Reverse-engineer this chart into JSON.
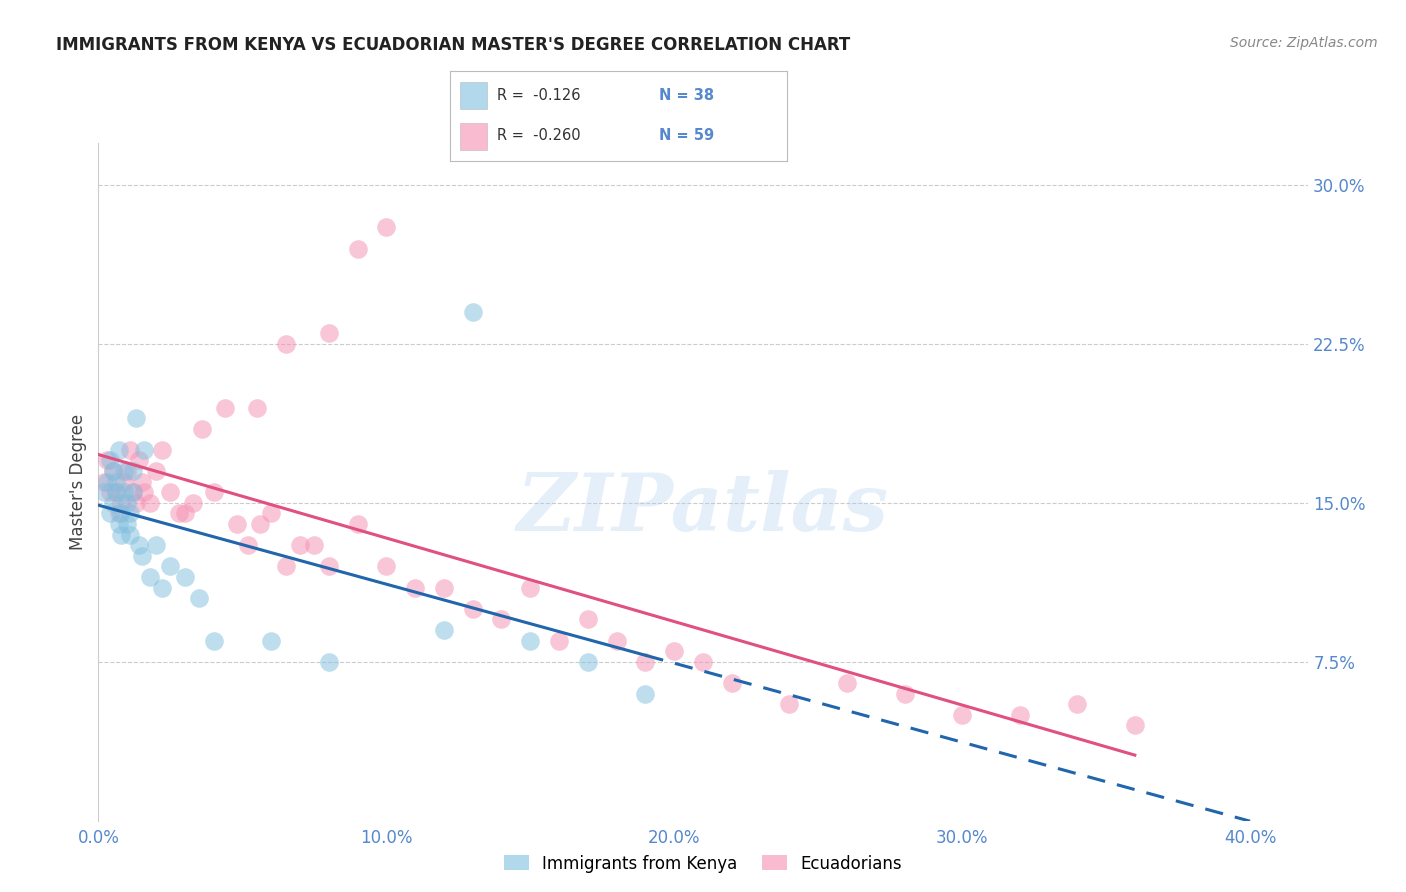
{
  "title": "IMMIGRANTS FROM KENYA VS ECUADORIAN MASTER'S DEGREE CORRELATION CHART",
  "source": "Source: ZipAtlas.com",
  "ylabel": "Master's Degree",
  "ytick_vals": [
    0.075,
    0.15,
    0.225,
    0.3
  ],
  "ytick_labels": [
    "7.5%",
    "15.0%",
    "22.5%",
    "30.0%"
  ],
  "xtick_vals": [
    0.0,
    0.1,
    0.2,
    0.3,
    0.4
  ],
  "xtick_labels": [
    "0.0%",
    "10.0%",
    "20.0%",
    "30.0%",
    "40.0%"
  ],
  "xlim": [
    0.0,
    0.42
  ],
  "ylim": [
    0.0,
    0.32
  ],
  "watermark": "ZIPatlas",
  "color_blue": "#7fbfdf",
  "color_pink": "#f48fb1",
  "color_blue_line": "#2166ac",
  "color_pink_line": "#e05080",
  "color_axis": "#5588cc",
  "kenya_x": [
    0.002,
    0.003,
    0.004,
    0.004,
    0.005,
    0.005,
    0.006,
    0.006,
    0.007,
    0.007,
    0.008,
    0.008,
    0.009,
    0.009,
    0.01,
    0.01,
    0.011,
    0.011,
    0.012,
    0.012,
    0.013,
    0.014,
    0.015,
    0.016,
    0.018,
    0.02,
    0.022,
    0.025,
    0.03,
    0.035,
    0.04,
    0.06,
    0.08,
    0.12,
    0.15,
    0.17,
    0.19,
    0.13
  ],
  "kenya_y": [
    0.155,
    0.16,
    0.17,
    0.145,
    0.15,
    0.165,
    0.155,
    0.16,
    0.14,
    0.175,
    0.135,
    0.145,
    0.155,
    0.165,
    0.15,
    0.14,
    0.145,
    0.135,
    0.155,
    0.165,
    0.19,
    0.13,
    0.125,
    0.175,
    0.115,
    0.13,
    0.11,
    0.12,
    0.115,
    0.105,
    0.085,
    0.085,
    0.075,
    0.09,
    0.085,
    0.075,
    0.06,
    0.24
  ],
  "ecuador_x": [
    0.002,
    0.003,
    0.004,
    0.005,
    0.006,
    0.007,
    0.008,
    0.009,
    0.01,
    0.011,
    0.012,
    0.013,
    0.014,
    0.015,
    0.016,
    0.018,
    0.02,
    0.022,
    0.025,
    0.028,
    0.03,
    0.033,
    0.036,
    0.04,
    0.044,
    0.048,
    0.052,
    0.056,
    0.06,
    0.065,
    0.07,
    0.075,
    0.08,
    0.09,
    0.1,
    0.11,
    0.12,
    0.13,
    0.14,
    0.15,
    0.16,
    0.17,
    0.18,
    0.19,
    0.2,
    0.21,
    0.22,
    0.24,
    0.26,
    0.28,
    0.3,
    0.32,
    0.34,
    0.36,
    0.1,
    0.09,
    0.08,
    0.065,
    0.055
  ],
  "ecuador_y": [
    0.16,
    0.17,
    0.155,
    0.165,
    0.155,
    0.145,
    0.15,
    0.16,
    0.165,
    0.175,
    0.155,
    0.15,
    0.17,
    0.16,
    0.155,
    0.15,
    0.165,
    0.175,
    0.155,
    0.145,
    0.145,
    0.15,
    0.185,
    0.155,
    0.195,
    0.14,
    0.13,
    0.14,
    0.145,
    0.12,
    0.13,
    0.13,
    0.12,
    0.14,
    0.12,
    0.11,
    0.11,
    0.1,
    0.095,
    0.11,
    0.085,
    0.095,
    0.085,
    0.075,
    0.08,
    0.075,
    0.065,
    0.055,
    0.065,
    0.06,
    0.05,
    0.05,
    0.055,
    0.045,
    0.28,
    0.27,
    0.23,
    0.225,
    0.195
  ]
}
